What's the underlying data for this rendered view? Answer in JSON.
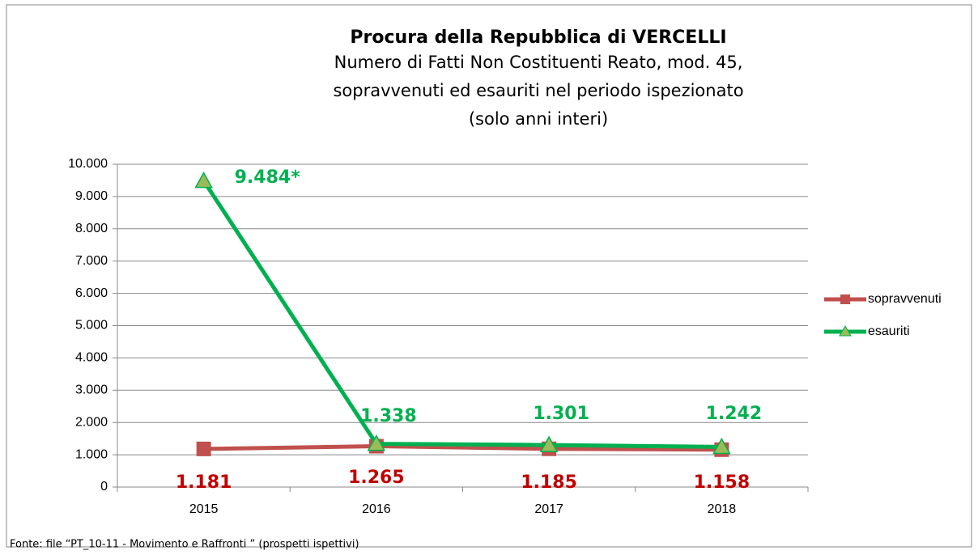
{
  "chart_data": {
    "type": "line",
    "title": "Procura della Repubblica di VERCELLI",
    "subtitle": [
      "Numero di Fatti Non Costituenti Reato, mod. 45,",
      "sopravvenuti ed esauriti nel periodo ispezionato",
      "(solo anni interi)"
    ],
    "source": "Fonte: file “PT_10-11 - Movimento e Raffronti ” (prospetti ispettivi)",
    "categories": [
      "2015",
      "2016",
      "2017",
      "2018"
    ],
    "series": [
      {
        "name": "sopravvenuti",
        "color": "#c0504d",
        "label_color": "#c00000",
        "marker": "square",
        "values": [
          1181,
          1265,
          1185,
          1158
        ],
        "value_labels": [
          "1.181",
          "1.265",
          "1.185",
          "1.158"
        ]
      },
      {
        "name": "esauriti",
        "color": "#00b050",
        "label_color": "#00b050",
        "marker": "triangle",
        "marker_color": "#9bbb59",
        "values": [
          9484,
          1338,
          1301,
          1242
        ],
        "value_labels": [
          "9.484*",
          "1.338",
          "1.301",
          "1.242"
        ]
      }
    ],
    "ylim": [
      0,
      10000
    ],
    "yticks": [
      0,
      {
        "value": 1000,
        "label": "1.000"
      },
      {
        "value": 2000,
        "label": "2.000"
      },
      {
        "value": 3000,
        "label": "3.000"
      },
      {
        "value": 4000,
        "label": "4.000"
      },
      {
        "value": 5000,
        "label": "5.000"
      },
      {
        "value": 6000,
        "label": "6.000"
      },
      {
        "value": 7000,
        "label": "7.000"
      },
      {
        "value": 8000,
        "label": "8.000"
      },
      {
        "value": 9000,
        "label": "9.000"
      },
      {
        "value": 10000,
        "label": "10.000"
      }
    ],
    "grid": true,
    "legend": "right"
  }
}
